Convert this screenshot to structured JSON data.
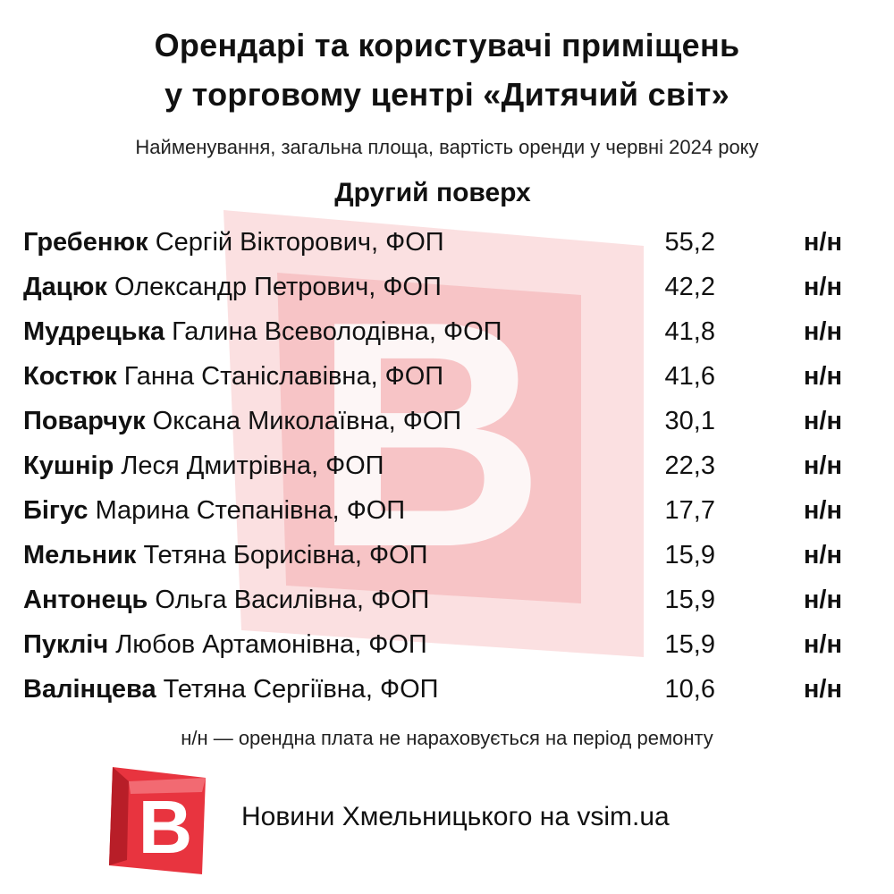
{
  "title": {
    "line1": "Орендарі та користувачі приміщень",
    "line2": "у торговому центрі «Дитячий світ»"
  },
  "subtitle": "Найменування, загальна площа, вартість оренди у червні 2024 року",
  "section": "Другий поверх",
  "rows": [
    {
      "surname": "Гребенюк",
      "rest": " Сергій Вікторович, ФОП",
      "area": "55,2",
      "rent": "н/н"
    },
    {
      "surname": "Дацюк",
      "rest": " Олександр Петрович, ФОП",
      "area": "42,2",
      "rent": "н/н"
    },
    {
      "surname": "Мудрецька",
      "rest": " Галина Всеволодівна, ФОП",
      "area": "41,8",
      "rent": "н/н"
    },
    {
      "surname": "Костюк",
      "rest": " Ганна Станіславівна, ФОП",
      "area": "41,6",
      "rent": "н/н"
    },
    {
      "surname": "Поварчук",
      "rest": " Оксана Миколаївна, ФОП",
      "area": "30,1",
      "rent": "н/н"
    },
    {
      "surname": "Кушнір",
      "rest": " Леся Дмитрівна, ФОП",
      "area": "22,3",
      "rent": "н/н"
    },
    {
      "surname": "Бігус",
      "rest": " Марина Степанівна, ФОП",
      "area": "17,7",
      "rent": "н/н"
    },
    {
      "surname": "Мельник",
      "rest": " Тетяна Борисівна, ФОП",
      "area": "15,9",
      "rent": "н/н"
    },
    {
      "surname": "Антонець",
      "rest": " Ольга Василівна, ФОП",
      "area": "15,9",
      "rent": "н/н"
    },
    {
      "surname": "Пукліч",
      "rest": " Любов Артамонівна, ФОП",
      "area": "15,9",
      "rent": "н/н"
    },
    {
      "surname": "Валінцева",
      "rest": " Тетяна Сергіївна, ФОП",
      "area": "10,6",
      "rent": "н/н"
    }
  ],
  "footnote": "н/н — орендна плата не нараховується на період ремонту",
  "footer": {
    "logo_letter": "B",
    "text": "Новини Хмельницького на vsim.ua"
  },
  "colors": {
    "brand_red": "#e8343f",
    "brand_dark_red": "#b81e28",
    "watermark_red": "#f7c4c6"
  }
}
